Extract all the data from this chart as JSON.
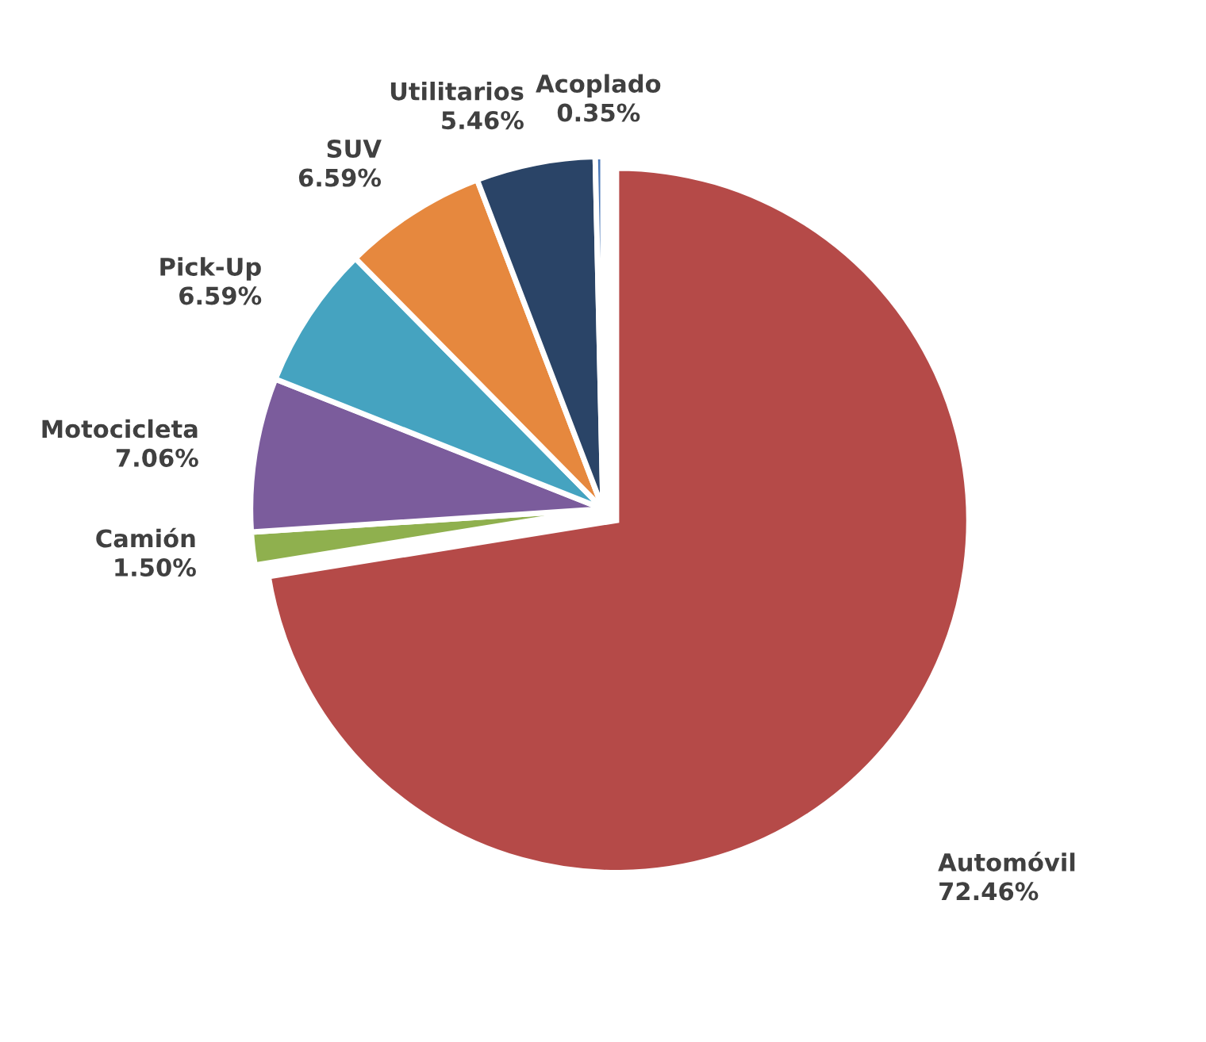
{
  "chart_data": {
    "type": "pie",
    "categories": [
      "Automóvil",
      "Camión",
      "Motocicleta",
      "Pick-Up",
      "SUV",
      "Utilitarios",
      "Acoplado"
    ],
    "values": [
      72.46,
      1.5,
      7.06,
      6.59,
      6.59,
      5.46,
      0.35
    ],
    "value_labels": [
      "72.46%",
      "1.50%",
      "7.06%",
      "6.59%",
      "6.59%",
      "5.46%",
      "0.35%"
    ],
    "colors": [
      "#b54a48",
      "#8fb04e",
      "#7b5c9c",
      "#45a3c0",
      "#e6883e",
      "#2a4467",
      "#4a78b8"
    ],
    "legend": false
  }
}
